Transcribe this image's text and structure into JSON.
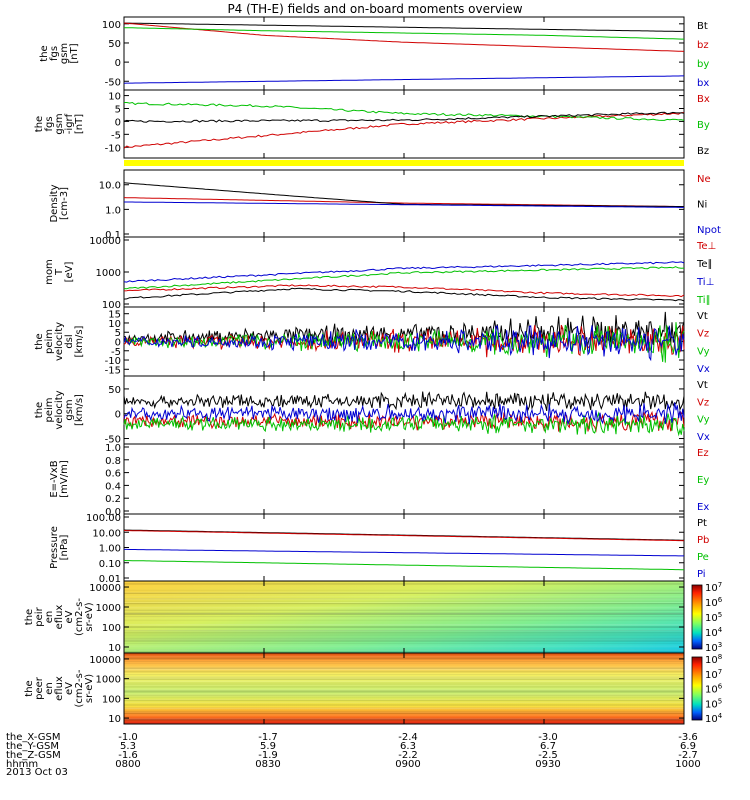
{
  "title": "P4 (TH-E) fields and on-board moments overview",
  "date": "2013 Oct 03",
  "chart_data": [
    {
      "type": "line",
      "ylabel": [
        "the",
        "fgs",
        "gsm",
        "[nT]"
      ],
      "yticks": [
        "100",
        "50",
        "0",
        "-50"
      ],
      "ylim": [
        -65,
        110
      ],
      "series": [
        {
          "name": "Bt",
          "color": "#000000",
          "x": [
            0,
            1
          ],
          "values": [
            102,
            80
          ]
        },
        {
          "name": "bz",
          "color": "#d00000",
          "x": [
            0,
            0.25,
            0.5,
            0.75,
            1
          ],
          "values": [
            102,
            70,
            52,
            40,
            28
          ]
        },
        {
          "name": "by",
          "color": "#00c000",
          "x": [
            0,
            0.25,
            0.5,
            0.75,
            1
          ],
          "values": [
            90,
            82,
            76,
            70,
            60
          ]
        },
        {
          "name": "bx",
          "color": "#0000d0",
          "x": [
            0,
            1
          ],
          "values": [
            -55,
            -36
          ]
        }
      ]
    },
    {
      "type": "line",
      "ylabel": [
        "the",
        "fgs",
        "gsm",
        "-igrf",
        "[nT]"
      ],
      "yticks": [
        "10",
        "5",
        "0",
        "-5",
        "-10"
      ],
      "ylim": [
        -13,
        11
      ],
      "series": [
        {
          "name": "Bx",
          "color": "#d00000",
          "x": [
            0,
            0.5,
            1
          ],
          "values": [
            -10,
            -1,
            3.2
          ]
        },
        {
          "name": "By",
          "color": "#00c000",
          "x": [
            0,
            0.25,
            0.5,
            0.75,
            1
          ],
          "values": [
            7,
            6,
            3,
            2,
            0.5
          ]
        },
        {
          "name": "Bz",
          "color": "#000000",
          "x": [
            0,
            0.5,
            1
          ],
          "values": [
            0,
            0.5,
            3.5
          ]
        }
      ]
    },
    {
      "type": "line",
      "scale": "log",
      "ylabel": [
        "Density",
        "[cm-3]"
      ],
      "yticks": [
        "10.0",
        "1.0",
        "0.1"
      ],
      "ylim": [
        0.1,
        30
      ],
      "series": [
        {
          "name": "Ne",
          "color": "#d00000",
          "x": [
            0,
            0.5,
            1
          ],
          "values": [
            3,
            1.8,
            1.3
          ]
        },
        {
          "name": "Ni",
          "color": "#000000",
          "x": [
            0,
            0.3,
            0.5,
            1
          ],
          "values": [
            12,
            3.5,
            1.6,
            1.3
          ]
        },
        {
          "name": "Npot",
          "color": "#0000d0",
          "x": [
            0,
            1
          ],
          "values": [
            2,
            1.2
          ]
        }
      ]
    },
    {
      "type": "line",
      "scale": "log",
      "ylabel": [
        "mom",
        "T",
        "[eV]"
      ],
      "yticks": [
        "10000",
        "1000",
        "100"
      ],
      "ylim": [
        100,
        10000
      ],
      "series": [
        {
          "name": "Te⊥",
          "color": "#d00000",
          "x": [
            0,
            0.3,
            0.5,
            0.75,
            1
          ],
          "values": [
            260,
            380,
            340,
            220,
            180
          ]
        },
        {
          "name": "Te∥",
          "color": "#000000",
          "x": [
            0,
            0.3,
            0.5,
            0.75,
            1
          ],
          "values": [
            150,
            300,
            250,
            160,
            130
          ]
        },
        {
          "name": "Ti⊥",
          "color": "#0000d0",
          "x": [
            0,
            0.5,
            1
          ],
          "values": [
            500,
            1300,
            2000
          ]
        },
        {
          "name": "Ti∥",
          "color": "#00c000",
          "x": [
            0,
            0.5,
            1
          ],
          "values": [
            300,
            950,
            1400
          ]
        }
      ]
    },
    {
      "type": "line",
      "ylabel": [
        "the",
        "peim",
        "velocity",
        "dsl",
        "[km/s]"
      ],
      "yticks": [
        "15",
        "10",
        "5",
        "0",
        "-5",
        "-10",
        "-15"
      ],
      "ylim": [
        -17,
        17
      ],
      "series": [
        {
          "name": "Vt",
          "color": "#000000"
        },
        {
          "name": "Vz",
          "color": "#d00000"
        },
        {
          "name": "Vy",
          "color": "#00c000"
        },
        {
          "name": "Vx",
          "color": "#0000d0"
        }
      ]
    },
    {
      "type": "line",
      "ylabel": [
        "the",
        "peim",
        "velocity",
        "gsm",
        "[km/s]"
      ],
      "yticks": [
        "50",
        "0",
        "-50"
      ],
      "ylim": [
        -55,
        70
      ],
      "series": [
        {
          "name": "Vt",
          "color": "#000000"
        },
        {
          "name": "Vz",
          "color": "#d00000"
        },
        {
          "name": "Vy",
          "color": "#00c000"
        },
        {
          "name": "Vx",
          "color": "#0000d0"
        }
      ]
    },
    {
      "type": "line",
      "ylabel": [
        "E=-VxB",
        "[mV/m]"
      ],
      "yticks": [
        "1.0",
        "0.8",
        "0.6",
        "0.4",
        "0.2",
        "0.0"
      ],
      "ylim": [
        0,
        1
      ],
      "series": [
        {
          "name": "Ez",
          "color": "#d00000"
        },
        {
          "name": "Ey",
          "color": "#00c000"
        },
        {
          "name": "Ex",
          "color": "#0000d0"
        }
      ]
    },
    {
      "type": "line",
      "scale": "log",
      "ylabel": [
        "Pressure",
        "[nPa]"
      ],
      "yticks": [
        "100.00",
        "10.00",
        "1.00",
        "0.10",
        "0.01"
      ],
      "ylim": [
        0.01,
        100
      ],
      "series": [
        {
          "name": "Pt",
          "color": "#000000",
          "x": [
            0,
            1
          ],
          "values": [
            14,
            3
          ]
        },
        {
          "name": "Pb",
          "color": "#d00000",
          "x": [
            0,
            1
          ],
          "values": [
            13,
            2.8
          ]
        },
        {
          "name": "Pe",
          "color": "#00c000",
          "x": [
            0,
            1
          ],
          "values": [
            0.14,
            0.035
          ]
        },
        {
          "name": "Pi",
          "color": "#0000d0",
          "x": [
            0,
            1
          ],
          "values": [
            0.75,
            0.28
          ]
        }
      ]
    },
    {
      "type": "heatmap",
      "ylabel": [
        "the",
        "peir",
        "en",
        "eflux",
        "eV",
        "(cm2-s-",
        "sr-eV)"
      ],
      "yticks": [
        "10000",
        "1000",
        "100",
        "10"
      ],
      "colorbar_ticks": [
        "10^7",
        "10^6",
        "10^5",
        "10^4",
        "10^3"
      ]
    },
    {
      "type": "heatmap",
      "ylabel": [
        "the",
        "peer",
        "en",
        "eflux",
        "eV",
        "(cm2-s-",
        "sr-eV)"
      ],
      "yticks": [
        "10000",
        "1000",
        "100",
        "10"
      ],
      "colorbar_ticks": [
        "10^8",
        "10^7",
        "10^6",
        "10^5",
        "10^4"
      ]
    }
  ],
  "xaxis": {
    "row_labels": [
      "the_X-GSM",
      "the_Y-GSM",
      "the_Z-GSM",
      "hhmm"
    ],
    "columns": [
      [
        "-1.0",
        "5.3",
        "-1.6",
        "0800"
      ],
      [
        "-1.7",
        "5.9",
        "-1.9",
        "0830"
      ],
      [
        "-2.4",
        "6.3",
        "-2.2",
        "0900"
      ],
      [
        "-3.0",
        "6.7",
        "-2.5",
        "0930"
      ],
      [
        "-3.6",
        "6.9",
        "-2.7",
        "1000"
      ]
    ]
  }
}
